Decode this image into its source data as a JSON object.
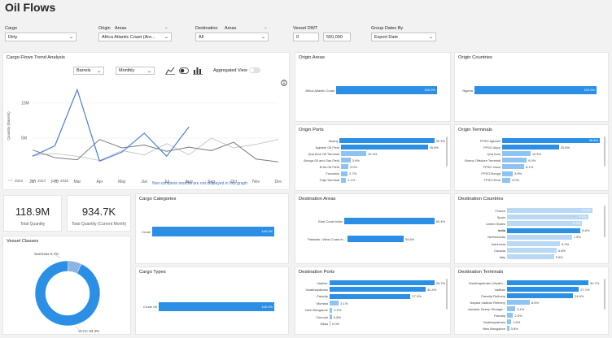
{
  "page": {
    "title": "Oil Flows"
  },
  "filters": {
    "cargo": {
      "label": "Cargo",
      "value": "Dirty"
    },
    "origin": {
      "label": "Origin",
      "mode": "Areas",
      "value": "Africa Atlantic Coast (Are..."
    },
    "destination": {
      "label": "Destination",
      "mode": "Areas",
      "value": "All"
    },
    "vessel_dwt": {
      "label": "Vessel DWT",
      "min": "0",
      "max": "550,000"
    },
    "group_dates": {
      "label": "Group Dates By",
      "value": "Export Date"
    }
  },
  "trend": {
    "title": "Cargo Flows Trend Analysis",
    "unit_select": "Barrels",
    "period_select": "Monthly",
    "aggregated_label": "Aggregated View",
    "note": "Non-complete months are not displayed in this graph",
    "chart_data": {
      "type": "line",
      "ylabel": "Quantity (Barrels)",
      "y_ticks": [
        "10M",
        "5M"
      ],
      "ylim": [
        0,
        13000000
      ],
      "categories": [
        "Jan",
        "Feb",
        "Mar",
        "Apr",
        "May",
        "Jun",
        "Jul",
        "Aug",
        "Sep",
        "Oct",
        "Nov",
        "Dec"
      ],
      "series": [
        {
          "name": "2023",
          "color": "#c8c8c8",
          "values": [
            2500000,
            2800000,
            2400000,
            1800000,
            3200000,
            2600000,
            4200000,
            2600000,
            5000000,
            3600000,
            4100000,
            4800000
          ]
        },
        {
          "name": "2024",
          "color": "#7a7a7a",
          "values": [
            3300000,
            2200000,
            1900000,
            4800000,
            3600000,
            4000000,
            3100000,
            3700000,
            3200000,
            4400000,
            2000000,
            1600000
          ]
        },
        {
          "name": "2025",
          "color": "#4a7fde",
          "values": [
            2400000,
            3900000,
            11900000,
            1700000,
            3000000,
            5700000,
            2400000,
            6600000,
            null,
            null,
            null,
            null
          ]
        }
      ]
    }
  },
  "kpis": [
    {
      "value": "118.9M",
      "label": "Total Quantity"
    },
    {
      "value": "934.7K",
      "label": "Total Quantity (Current Month)"
    }
  ],
  "vessel_classes": {
    "title": "Vessel Classes",
    "chart_data": {
      "type": "pie",
      "labels": [
        "Suezmax",
        "VLCC"
      ],
      "values": [
        6.7,
        93.3
      ],
      "slice_labels": [
        "Suezmax 6.7%",
        "VLCC 93.3%"
      ],
      "colors": [
        "#8fb3e0",
        "#2b8fe6"
      ]
    }
  },
  "cargo_categories": {
    "title": "Cargo Categories",
    "rows": [
      {
        "label": "Crude",
        "value": 100.0,
        "text": "100.0%"
      }
    ]
  },
  "cargo_types": {
    "title": "Cargo Types",
    "rows": [
      {
        "label": "Crude Oil",
        "value": 100.0,
        "text": "100.0%"
      }
    ]
  },
  "origin_areas": {
    "title": "Origin Areas",
    "rows": [
      {
        "label": "Africa Atlantic Coast",
        "value": 100.0,
        "text": "100.0%"
      }
    ]
  },
  "origin_countries": {
    "title": "Origin Countries",
    "rows": [
      {
        "label": "Nigeria",
        "value": 100.0,
        "text": "100.0%"
      }
    ]
  },
  "origin_ports": {
    "title": "Origin Ports",
    "rows": [
      {
        "label": "Bonny",
        "value": 40.3,
        "text": "40.3%"
      },
      {
        "label": "Agbami Oil Field",
        "value": 35.8,
        "text": "35.8%"
      },
      {
        "label": "Qua Iboe Oil Terminal",
        "value": 10.4,
        "text": "10.4%"
      },
      {
        "label": "Bonga Oil and Gas Field",
        "value": 3.9,
        "text": "3.9%"
      },
      {
        "label": "Erha Oil Field",
        "value": 3.0,
        "text": "3.0%"
      },
      {
        "label": "Forcados",
        "value": 2.7,
        "text": "2.7%"
      },
      {
        "label": "Tulja Terminal",
        "value": 2.1,
        "text": "2.1%"
      }
    ]
  },
  "origin_terminals": {
    "title": "Origin Terminals",
    "rows": [
      {
        "label": "FPSO Agbami",
        "value": 35.8,
        "text": "35.8%"
      },
      {
        "label": "FPSO Akpo",
        "value": 20.8,
        "text": "20.8%"
      },
      {
        "label": "Qua Iboe",
        "value": 10.4,
        "text": "10.4%"
      },
      {
        "label": "Bonny Offshore Terminal",
        "value": 9.0,
        "text": "9.0%"
      },
      {
        "label": "FPSO Usan",
        "value": 8.1,
        "text": "8.1%"
      },
      {
        "label": "FPSO Bonga",
        "value": 3.9,
        "text": "3.9%"
      },
      {
        "label": "FPSO Erha",
        "value": 3.0,
        "text": "3.0%"
      }
    ]
  },
  "destination_areas": {
    "title": "Destination Areas",
    "rows": [
      {
        "label": "East Coast India",
        "value": 60.4,
        "text": "60.4%"
      },
      {
        "label": "Pakistan / West Coast In...",
        "value": 34.6,
        "text": "34.6%"
      }
    ]
  },
  "destination_countries": {
    "title": "Destination Countries",
    "rows": [
      {
        "label": "France",
        "value": 10.0,
        "text": "10.0%"
      },
      {
        "label": "Spain",
        "value": 9.5,
        "text": "9.5%"
      },
      {
        "label": "United States",
        "value": 8.8,
        "text": "8.8%"
      },
      {
        "label": "India",
        "value": 8.6,
        "text": "8.6%"
      },
      {
        "label": "Netherlands",
        "value": 7.6,
        "text": "7.6%"
      },
      {
        "label": "Indonesia",
        "value": 6.2,
        "text": "6.2%"
      },
      {
        "label": "Canada",
        "value": 5.8,
        "text": "5.8%"
      },
      {
        "label": "Italy",
        "value": 5.5,
        "text": "5.5%"
      }
    ]
  },
  "destination_ports": {
    "title": "Destination Ports",
    "rows": [
      {
        "label": "Vadinar",
        "value": 35.7,
        "text": "35.7%"
      },
      {
        "label": "Visakhapatnam",
        "value": 32.4,
        "text": "32.4%"
      },
      {
        "label": "Paradip",
        "value": 27.3,
        "text": "27.3%"
      },
      {
        "label": "Mumbai",
        "value": 3.1,
        "text": "3.1%"
      },
      {
        "label": "New Mangalore",
        "value": 0.9,
        "text": "0.9%"
      },
      {
        "label": "Chennai",
        "value": 0.8,
        "text": "0.8%"
      },
      {
        "label": "Sikka",
        "value": 0.0,
        "text": "0.0%"
      }
    ]
  },
  "destination_terminals": {
    "title": "Destination Terminals",
    "rows": [
      {
        "label": "Visakhapatnam (Visakh...",
        "value": 30.7,
        "text": "30.7%"
      },
      {
        "label": "Vadinar",
        "value": 27.1,
        "text": "27.1%"
      },
      {
        "label": "Paradip Refinery",
        "value": 24.9,
        "text": "24.9%"
      },
      {
        "label": "Nayara Vadinar Refinery",
        "value": 8.6,
        "text": "8.6%"
      },
      {
        "label": "Jawahar Deeep Storage...",
        "value": 3.1,
        "text": "3.1%"
      },
      {
        "label": "Paradip",
        "value": 2.3,
        "text": "2.3%"
      },
      {
        "label": "Visakhapatnam",
        "value": 1.6,
        "text": "1.6%"
      },
      {
        "label": "New Mangalore",
        "value": 0.8,
        "text": "0.8%"
      }
    ]
  },
  "colors": {
    "bar": "#2b8fe6",
    "bar_light": "#b8d8f6",
    "accent": "#4a7fde"
  }
}
